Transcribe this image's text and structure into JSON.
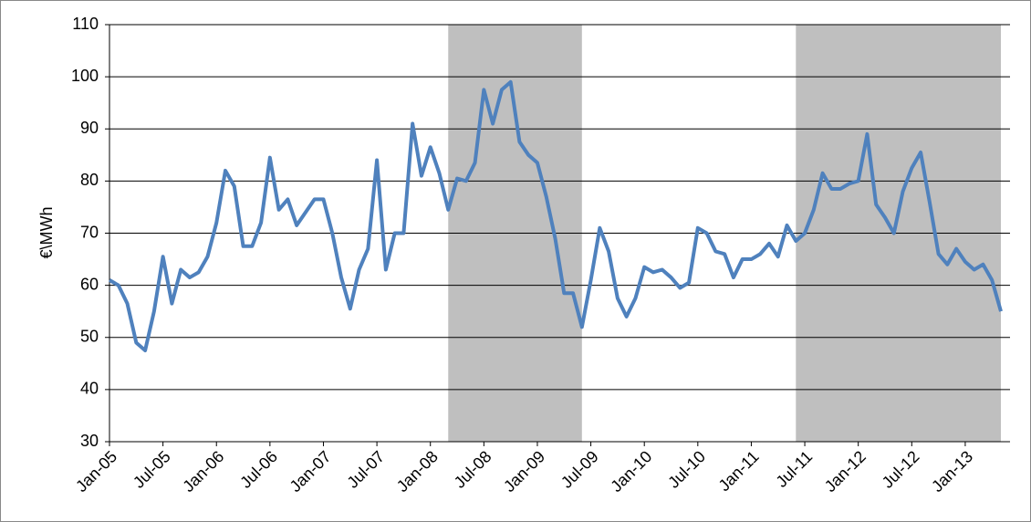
{
  "chart_data": {
    "type": "line",
    "y_label": "€\\MWh",
    "categories": [
      "Jan-05",
      null,
      null,
      null,
      null,
      null,
      "Jul-05",
      null,
      null,
      null,
      null,
      null,
      "Jan-06",
      null,
      null,
      null,
      null,
      null,
      "Jul-06",
      null,
      null,
      null,
      null,
      null,
      "Jan-07",
      null,
      null,
      null,
      null,
      null,
      "Jul-07",
      null,
      null,
      null,
      null,
      null,
      "Jan-08",
      null,
      null,
      null,
      null,
      null,
      "Jul-08",
      null,
      null,
      null,
      null,
      null,
      "Jan-09",
      null,
      null,
      null,
      null,
      null,
      "Jul-09",
      null,
      null,
      null,
      null,
      null,
      "Jan-10",
      null,
      null,
      null,
      null,
      null,
      "Jul-10",
      null,
      null,
      null,
      null,
      null,
      "Jan-11",
      null,
      null,
      null,
      null,
      null,
      "Jul-11",
      null,
      null,
      null,
      null,
      null,
      "Jan-12",
      null,
      null,
      null,
      null,
      null,
      "Jul-12",
      null,
      null,
      null,
      null,
      null,
      "Jan-13",
      null,
      null,
      null,
      null
    ],
    "series": [
      {
        "color": "#4f81bd",
        "values": [
          61,
          60,
          56.5,
          49,
          47.5,
          55,
          65.5,
          56.5,
          63,
          61.5,
          62.5,
          65.5,
          72,
          82,
          79,
          67.5,
          67.5,
          72,
          84.5,
          74.5,
          76.5,
          71.5,
          74,
          76.5,
          76.5,
          70,
          61.5,
          55.5,
          63,
          67,
          84,
          63,
          70,
          70,
          91,
          81,
          86.5,
          81.5,
          74.5,
          80.5,
          80,
          83.5,
          97.5,
          91,
          97.5,
          99,
          87.5,
          85,
          83.5,
          77,
          69,
          58.5,
          58.5,
          52,
          61,
          71,
          66.5,
          57.5,
          54,
          57.5,
          63.5,
          62.5,
          63,
          61.5,
          59.5,
          60.5,
          71,
          70,
          66.5,
          66,
          61.5,
          65,
          65,
          66,
          68,
          65.5,
          71.5,
          68.5,
          70,
          74.5,
          81.5,
          78.5,
          78.5,
          79.5,
          80,
          89,
          75.5,
          73,
          70,
          78,
          82.5,
          85.5,
          76,
          66,
          64,
          67,
          64.5,
          63,
          64,
          61,
          55
        ]
      }
    ],
    "shaded_periods": [
      {
        "start": 38,
        "end": 53
      },
      {
        "start": 77,
        "end": 100
      }
    ],
    "shade_color": "#bfbfbf",
    "ylim": [
      30,
      110
    ],
    "yticks": [
      30,
      40,
      50,
      60,
      70,
      80,
      90,
      100,
      110
    ],
    "grid": true
  }
}
